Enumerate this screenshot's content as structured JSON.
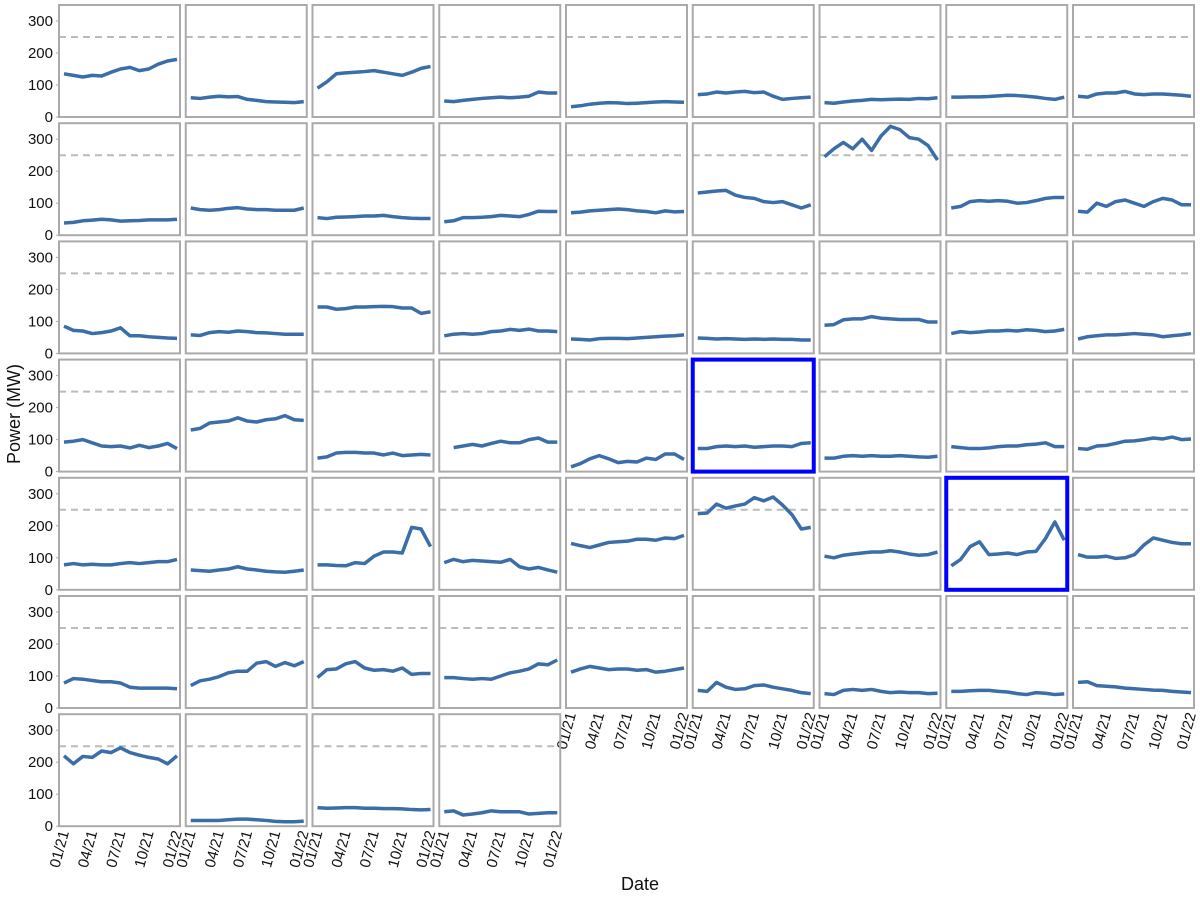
{
  "chart_data": {
    "type": "line",
    "x_label": "Date",
    "y_label": "Power (MW)",
    "x": [
      "01/21",
      "02/21",
      "03/21",
      "04/21",
      "05/21",
      "06/21",
      "07/21",
      "08/21",
      "09/21",
      "10/21",
      "11/21",
      "12/21",
      "01/22"
    ],
    "xticks": [
      "01/21",
      "04/21",
      "07/21",
      "10/21",
      "01/22"
    ],
    "ylim": [
      0,
      350
    ],
    "yticks": [
      0,
      100,
      200,
      300
    ],
    "reference_line": 250,
    "color": "#3b6ea8",
    "highlight_color": "#0000ff",
    "columns": 9,
    "series": [
      {
        "values": [
          135,
          130,
          125,
          130,
          128,
          140,
          150,
          155,
          145,
          150,
          165,
          175,
          180
        ]
      },
      {
        "values": [
          60,
          58,
          62,
          65,
          63,
          64,
          55,
          52,
          48,
          47,
          46,
          45,
          48
        ]
      },
      {
        "values": [
          90,
          110,
          135,
          138,
          140,
          142,
          145,
          140,
          135,
          130,
          140,
          152,
          158
        ]
      },
      {
        "values": [
          50,
          48,
          52,
          55,
          58,
          60,
          62,
          60,
          62,
          65,
          78,
          75,
          75
        ]
      },
      {
        "values": [
          32,
          35,
          40,
          43,
          45,
          44,
          42,
          43,
          45,
          47,
          48,
          47,
          46
        ]
      },
      {
        "values": [
          70,
          72,
          78,
          75,
          78,
          80,
          76,
          78,
          65,
          55,
          58,
          60,
          62
        ]
      },
      {
        "values": [
          45,
          43,
          47,
          50,
          52,
          55,
          54,
          55,
          56,
          55,
          58,
          57,
          60
        ]
      },
      {
        "values": [
          62,
          62,
          63,
          63,
          64,
          66,
          68,
          67,
          65,
          62,
          58,
          55,
          62
        ]
      },
      {
        "values": [
          65,
          62,
          72,
          75,
          75,
          80,
          72,
          70,
          72,
          72,
          70,
          68,
          65
        ]
      },
      {
        "values": [
          38,
          40,
          45,
          47,
          50,
          48,
          44,
          45,
          46,
          48,
          48,
          48,
          50
        ]
      },
      {
        "values": [
          85,
          80,
          78,
          80,
          84,
          86,
          82,
          80,
          80,
          78,
          78,
          78,
          85
        ]
      },
      {
        "values": [
          55,
          52,
          56,
          57,
          58,
          60,
          60,
          62,
          58,
          55,
          53,
          52,
          52
        ]
      },
      {
        "values": [
          42,
          45,
          55,
          55,
          56,
          58,
          62,
          60,
          58,
          65,
          75,
          74,
          74
        ]
      },
      {
        "values": [
          70,
          72,
          76,
          78,
          80,
          82,
          80,
          76,
          74,
          70,
          76,
          73,
          74
        ]
      },
      {
        "values": [
          132,
          135,
          138,
          140,
          125,
          118,
          115,
          105,
          102,
          105,
          95,
          85,
          95
        ]
      },
      {
        "values": [
          245,
          270,
          290,
          270,
          300,
          265,
          310,
          340,
          330,
          305,
          300,
          280,
          235
        ]
      },
      {
        "values": [
          85,
          90,
          105,
          108,
          106,
          108,
          106,
          100,
          102,
          108,
          115,
          118,
          118
        ]
      },
      {
        "values": [
          75,
          72,
          100,
          90,
          105,
          110,
          100,
          90,
          105,
          115,
          110,
          95,
          95
        ]
      },
      {
        "values": [
          85,
          72,
          70,
          62,
          65,
          70,
          80,
          55,
          55,
          52,
          50,
          48,
          47
        ]
      },
      {
        "values": [
          58,
          56,
          65,
          68,
          66,
          70,
          68,
          65,
          64,
          62,
          60,
          60,
          60
        ]
      },
      {
        "values": [
          145,
          145,
          138,
          140,
          145,
          145,
          146,
          147,
          146,
          142,
          142,
          125,
          130
        ]
      },
      {
        "values": [
          55,
          60,
          62,
          60,
          62,
          68,
          70,
          75,
          72,
          76,
          70,
          70,
          68
        ]
      },
      {
        "values": [
          45,
          44,
          42,
          46,
          47,
          47,
          46,
          48,
          50,
          52,
          54,
          55,
          58
        ]
      },
      {
        "values": [
          48,
          47,
          45,
          46,
          45,
          44,
          45,
          44,
          45,
          44,
          44,
          42,
          42
        ]
      },
      {
        "values": [
          88,
          90,
          105,
          108,
          108,
          115,
          110,
          108,
          106,
          106,
          106,
          98,
          98
        ]
      },
      {
        "values": [
          62,
          68,
          65,
          67,
          70,
          70,
          72,
          70,
          74,
          72,
          68,
          70,
          75
        ]
      },
      {
        "values": [
          45,
          52,
          55,
          58,
          58,
          60,
          62,
          60,
          58,
          52,
          55,
          58,
          62
        ]
      },
      {
        "values": [
          92,
          95,
          100,
          90,
          80,
          78,
          80,
          74,
          82,
          75,
          80,
          88,
          72
        ]
      },
      {
        "values": [
          130,
          135,
          152,
          155,
          158,
          168,
          158,
          155,
          162,
          165,
          175,
          162,
          160
        ]
      },
      {
        "values": [
          42,
          46,
          58,
          60,
          60,
          58,
          58,
          52,
          58,
          50,
          52,
          54,
          52
        ]
      },
      {
        "values": [
          null,
          75,
          80,
          85,
          80,
          88,
          95,
          90,
          90,
          100,
          105,
          92,
          92
        ]
      },
      {
        "values": [
          15,
          25,
          40,
          50,
          40,
          28,
          32,
          30,
          42,
          38,
          55,
          55,
          38
        ]
      },
      {
        "values": [
          72,
          72,
          78,
          80,
          78,
          80,
          76,
          78,
          80,
          80,
          78,
          88,
          90
        ],
        "highlight": true
      },
      {
        "values": [
          42,
          42,
          48,
          50,
          48,
          50,
          48,
          48,
          50,
          48,
          46,
          45,
          48
        ]
      },
      {
        "values": [
          78,
          75,
          72,
          72,
          74,
          78,
          80,
          80,
          84,
          86,
          90,
          78,
          78
        ]
      },
      {
        "values": [
          72,
          70,
          80,
          82,
          88,
          95,
          96,
          100,
          105,
          102,
          108,
          100,
          102
        ]
      },
      {
        "values": [
          78,
          82,
          78,
          80,
          78,
          78,
          82,
          85,
          82,
          85,
          88,
          88,
          95
        ]
      },
      {
        "values": [
          62,
          60,
          58,
          62,
          65,
          72,
          65,
          62,
          58,
          56,
          55,
          58,
          62
        ]
      },
      {
        "values": [
          78,
          78,
          76,
          75,
          85,
          82,
          105,
          118,
          118,
          115,
          195,
          190,
          135
        ]
      },
      {
        "values": [
          85,
          95,
          88,
          92,
          90,
          88,
          86,
          95,
          72,
          65,
          70,
          62,
          55
        ]
      },
      {
        "values": [
          145,
          138,
          132,
          140,
          148,
          150,
          152,
          158,
          158,
          155,
          162,
          160,
          170
        ]
      },
      {
        "values": [
          238,
          240,
          268,
          255,
          262,
          268,
          288,
          278,
          290,
          265,
          235,
          190,
          195
        ]
      },
      {
        "values": [
          105,
          100,
          108,
          112,
          115,
          118,
          118,
          122,
          118,
          112,
          108,
          110,
          118
        ]
      },
      {
        "values": [
          75,
          95,
          135,
          150,
          110,
          112,
          115,
          110,
          118,
          120,
          160,
          212,
          155
        ],
        "highlight": true
      },
      {
        "values": [
          110,
          102,
          102,
          105,
          98,
          100,
          110,
          140,
          162,
          155,
          148,
          144,
          144
        ]
      },
      {
        "values": [
          78,
          92,
          90,
          86,
          82,
          82,
          78,
          65,
          62,
          62,
          62,
          62,
          60
        ]
      },
      {
        "values": [
          70,
          85,
          90,
          98,
          110,
          115,
          115,
          140,
          145,
          130,
          142,
          132,
          145
        ]
      },
      {
        "values": [
          95,
          120,
          122,
          138,
          145,
          125,
          118,
          120,
          115,
          125,
          105,
          108,
          108
        ]
      },
      {
        "values": [
          95,
          95,
          92,
          90,
          92,
          90,
          100,
          110,
          115,
          122,
          138,
          135,
          150
        ]
      },
      {
        "values": [
          112,
          122,
          130,
          125,
          120,
          122,
          122,
          118,
          120,
          112,
          115,
          120,
          125
        ]
      },
      {
        "values": [
          55,
          52,
          80,
          65,
          58,
          60,
          70,
          72,
          65,
          60,
          55,
          48,
          45
        ]
      },
      {
        "values": [
          45,
          42,
          55,
          58,
          55,
          58,
          52,
          48,
          50,
          48,
          48,
          45,
          46
        ]
      },
      {
        "values": [
          52,
          52,
          54,
          55,
          55,
          52,
          50,
          45,
          42,
          48,
          46,
          42,
          44
        ]
      },
      {
        "values": [
          80,
          82,
          70,
          68,
          66,
          62,
          60,
          58,
          56,
          55,
          52,
          50,
          48
        ]
      },
      {
        "values": [
          220,
          195,
          218,
          215,
          235,
          230,
          245,
          230,
          222,
          215,
          210,
          195,
          220
        ]
      },
      {
        "values": [
          18,
          18,
          18,
          18,
          20,
          22,
          22,
          20,
          18,
          15,
          14,
          14,
          16
        ]
      },
      {
        "values": [
          58,
          56,
          57,
          58,
          58,
          56,
          56,
          55,
          55,
          54,
          52,
          51,
          52
        ]
      },
      {
        "values": [
          45,
          48,
          35,
          38,
          42,
          48,
          45,
          45,
          45,
          38,
          40,
          42,
          42
        ]
      }
    ]
  }
}
